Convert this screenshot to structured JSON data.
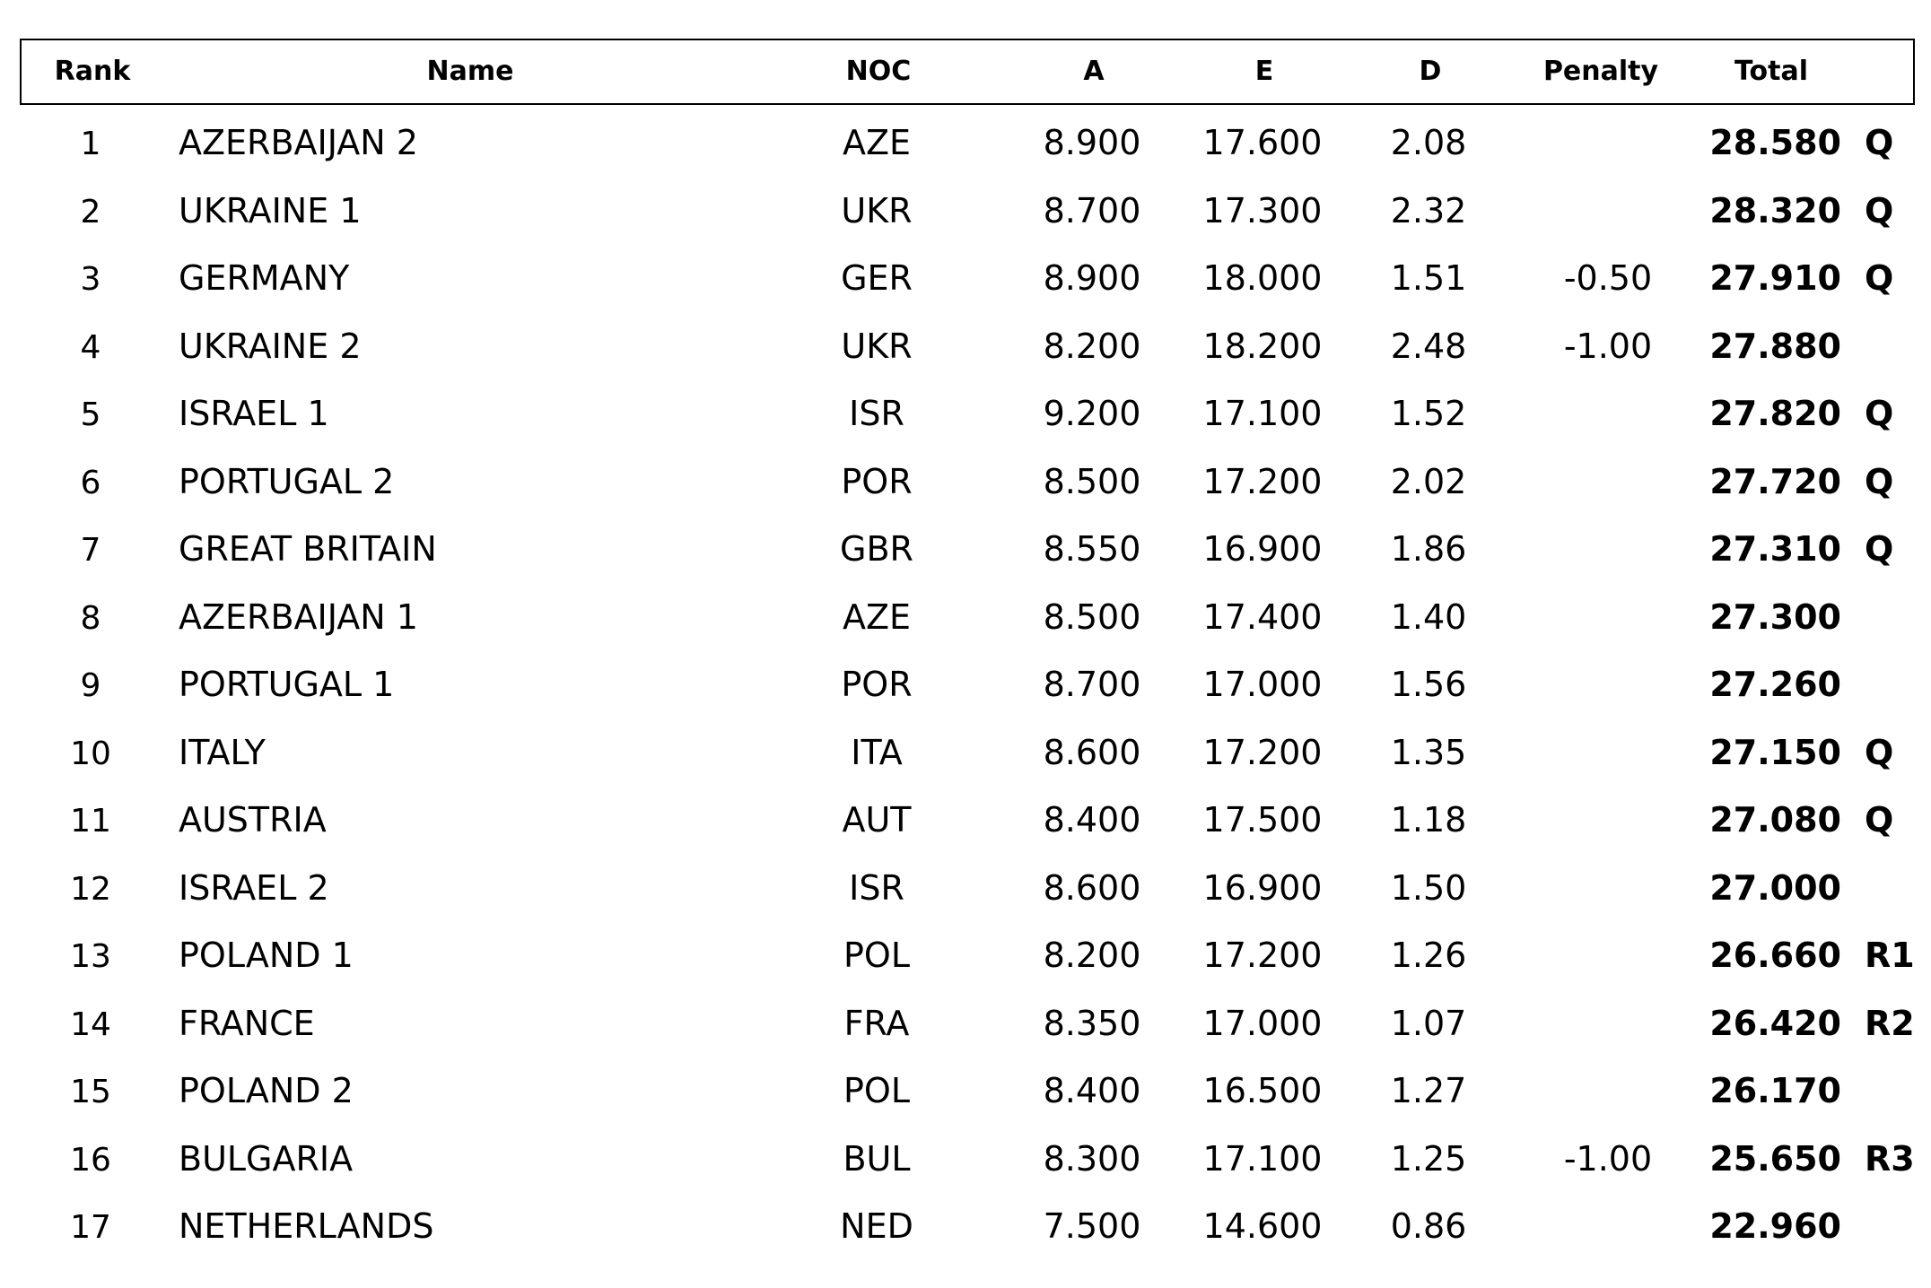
{
  "table": {
    "headers": {
      "rank": "Rank",
      "name": "Name",
      "noc": "NOC",
      "a": "A",
      "e": "E",
      "d": "D",
      "penalty": "Penalty",
      "total": "Total"
    },
    "rows": [
      {
        "rank": "1",
        "name": "AZERBAIJAN 2",
        "noc": "AZE",
        "a": "8.900",
        "e": "17.600",
        "d": "2.08",
        "penalty": "",
        "total": "28.580",
        "qual": "Q"
      },
      {
        "rank": "2",
        "name": "UKRAINE 1",
        "noc": "UKR",
        "a": "8.700",
        "e": "17.300",
        "d": "2.32",
        "penalty": "",
        "total": "28.320",
        "qual": "Q"
      },
      {
        "rank": "3",
        "name": "GERMANY",
        "noc": "GER",
        "a": "8.900",
        "e": "18.000",
        "d": "1.51",
        "penalty": "-0.50",
        "total": "27.910",
        "qual": "Q"
      },
      {
        "rank": "4",
        "name": "UKRAINE 2",
        "noc": "UKR",
        "a": "8.200",
        "e": "18.200",
        "d": "2.48",
        "penalty": "-1.00",
        "total": "27.880",
        "qual": ""
      },
      {
        "rank": "5",
        "name": "ISRAEL 1",
        "noc": "ISR",
        "a": "9.200",
        "e": "17.100",
        "d": "1.52",
        "penalty": "",
        "total": "27.820",
        "qual": "Q"
      },
      {
        "rank": "6",
        "name": "PORTUGAL 2",
        "noc": "POR",
        "a": "8.500",
        "e": "17.200",
        "d": "2.02",
        "penalty": "",
        "total": "27.720",
        "qual": "Q"
      },
      {
        "rank": "7",
        "name": "GREAT BRITAIN",
        "noc": "GBR",
        "a": "8.550",
        "e": "16.900",
        "d": "1.86",
        "penalty": "",
        "total": "27.310",
        "qual": "Q"
      },
      {
        "rank": "8",
        "name": "AZERBAIJAN 1",
        "noc": "AZE",
        "a": "8.500",
        "e": "17.400",
        "d": "1.40",
        "penalty": "",
        "total": "27.300",
        "qual": ""
      },
      {
        "rank": "9",
        "name": "PORTUGAL 1",
        "noc": "POR",
        "a": "8.700",
        "e": "17.000",
        "d": "1.56",
        "penalty": "",
        "total": "27.260",
        "qual": ""
      },
      {
        "rank": "10",
        "name": "ITALY",
        "noc": "ITA",
        "a": "8.600",
        "e": "17.200",
        "d": "1.35",
        "penalty": "",
        "total": "27.150",
        "qual": "Q"
      },
      {
        "rank": "11",
        "name": "AUSTRIA",
        "noc": "AUT",
        "a": "8.400",
        "e": "17.500",
        "d": "1.18",
        "penalty": "",
        "total": "27.080",
        "qual": "Q"
      },
      {
        "rank": "12",
        "name": "ISRAEL 2",
        "noc": "ISR",
        "a": "8.600",
        "e": "16.900",
        "d": "1.50",
        "penalty": "",
        "total": "27.000",
        "qual": ""
      },
      {
        "rank": "13",
        "name": "POLAND 1",
        "noc": "POL",
        "a": "8.200",
        "e": "17.200",
        "d": "1.26",
        "penalty": "",
        "total": "26.660",
        "qual": "R1"
      },
      {
        "rank": "14",
        "name": "FRANCE",
        "noc": "FRA",
        "a": "8.350",
        "e": "17.000",
        "d": "1.07",
        "penalty": "",
        "total": "26.420",
        "qual": "R2"
      },
      {
        "rank": "15",
        "name": "POLAND 2",
        "noc": "POL",
        "a": "8.400",
        "e": "16.500",
        "d": "1.27",
        "penalty": "",
        "total": "26.170",
        "qual": ""
      },
      {
        "rank": "16",
        "name": "BULGARIA",
        "noc": "BUL",
        "a": "8.300",
        "e": "17.100",
        "d": "1.25",
        "penalty": "-1.00",
        "total": "25.650",
        "qual": "R3"
      },
      {
        "rank": "17",
        "name": "NETHERLANDS",
        "noc": "NED",
        "a": "7.500",
        "e": "14.600",
        "d": "0.86",
        "penalty": "",
        "total": "22.960",
        "qual": ""
      }
    ]
  }
}
